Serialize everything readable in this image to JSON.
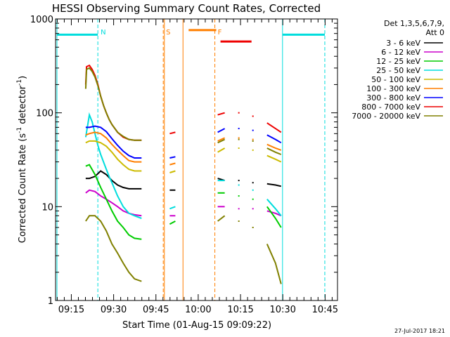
{
  "chart_data": {
    "type": "line",
    "title": "HESSI Observing Summary Count Rates, Corrected",
    "xlabel": "Start Time (01-Aug-15 09:09:22)",
    "ylabel": "Corrected Count Rate (s⁻¹ detector⁻¹)",
    "ylabel_parts": {
      "prefix": "Corrected Count Rate (s",
      "exp1": "-1",
      "middle": " detector",
      "exp2": "-1",
      "suffix": ")"
    },
    "y_scale": "log",
    "ylim": [
      1,
      1000
    ],
    "y_ticks": [
      {
        "value": 1,
        "label": "1"
      },
      {
        "value": 10,
        "label": "10"
      },
      {
        "value": 100,
        "label": "100"
      },
      {
        "value": 1000,
        "label": "1000"
      }
    ],
    "x_unit": "minutes after 09:09:22",
    "xlim": [
      0,
      100
    ],
    "x_ticks": [
      {
        "value": 5.6,
        "label": "09:15"
      },
      {
        "value": 20.6,
        "label": "09:30"
      },
      {
        "value": 35.6,
        "label": "09:45"
      },
      {
        "value": 50.6,
        "label": "10:00"
      },
      {
        "value": 65.6,
        "label": "10:15"
      },
      {
        "value": 80.6,
        "label": "10:30"
      },
      {
        "value": 95.6,
        "label": "10:45"
      }
    ],
    "legend": {
      "header": [
        "Det 1,3,5,6,7,9,",
        "Att 0"
      ],
      "placement": "right"
    },
    "series": [
      {
        "name": "3 - 6 keV",
        "color": "#000000",
        "x": [
          10.7,
          12.0,
          14.0,
          16.0,
          18.0,
          20.0,
          22.0,
          24.0,
          26.0,
          28.0,
          30.5,
          40.5,
          42.5,
          57.5,
          60.0,
          65.0,
          70.0,
          75.0,
          78.0,
          80.0
        ],
        "y": [
          20,
          20,
          21,
          24,
          22,
          19,
          17,
          16,
          15.5,
          15.5,
          15.5,
          15,
          15,
          20,
          19,
          19,
          18,
          17.5,
          17,
          16.5
        ]
      },
      {
        "name": "6 - 12 keV",
        "color": "#cc00cc",
        "x": [
          10.7,
          12.0,
          14.0,
          16.0,
          18.0,
          20.0,
          22.0,
          24.0,
          26.0,
          28.0,
          30.5,
          40.5,
          42.5,
          57.5,
          60.0,
          65.0,
          70.0,
          75.0,
          78.0,
          80.0
        ],
        "y": [
          14,
          15,
          14.5,
          13,
          12,
          11,
          10,
          9,
          8.5,
          8.2,
          8,
          8,
          8,
          10,
          10,
          9.5,
          9.5,
          9,
          8.5,
          8
        ]
      },
      {
        "name": "12 - 25 keV",
        "color": "#00cc00",
        "x": [
          10.7,
          12.0,
          14.0,
          16.0,
          18.0,
          20.0,
          22.0,
          24.0,
          26.0,
          28.0,
          30.5,
          40.5,
          42.5,
          57.5,
          60.0,
          65.0,
          70.0,
          75.0,
          78.0,
          80.0
        ],
        "y": [
          27,
          28,
          22,
          16,
          12,
          9,
          7,
          6,
          5,
          4.6,
          4.5,
          6.5,
          7,
          14,
          14,
          13,
          12,
          10,
          7.5,
          6
        ]
      },
      {
        "name": "25 - 50 keV",
        "color": "#00dddd",
        "x": [
          10.7,
          12.0,
          13.0,
          14.0,
          15.0,
          16.0,
          17.0,
          18.0,
          19.0,
          20.0,
          22.0,
          24.0,
          26.0,
          28.0,
          30.5,
          40.5,
          42.5,
          57.5,
          60.0,
          65.0,
          70.0,
          75.0,
          78.0,
          80.0
        ],
        "y": [
          55,
          95,
          80,
          60,
          45,
          36,
          30,
          25,
          21,
          18,
          13,
          10,
          8.5,
          8,
          7.5,
          9.5,
          10,
          19,
          19,
          17,
          15,
          12,
          9.5,
          8
        ]
      },
      {
        "name": "50 - 100 keV",
        "color": "#ccbb00",
        "x": [
          10.7,
          12.0,
          14.0,
          16.0,
          18.0,
          20.0,
          22.0,
          24.0,
          26.0,
          28.0,
          30.5,
          40.5,
          42.5,
          57.5,
          60.0,
          65.0,
          70.0,
          75.0,
          78.0,
          80.0
        ],
        "y": [
          48,
          50,
          50,
          48,
          44,
          38,
          32,
          28,
          25,
          24,
          24,
          23,
          24,
          38,
          42,
          42,
          40,
          35,
          32,
          30
        ]
      },
      {
        "name": "100 - 300 keV",
        "color": "#ff7f00",
        "x": [
          10.7,
          12.0,
          14.0,
          16.0,
          18.0,
          20.0,
          22.0,
          24.0,
          26.0,
          28.0,
          30.5,
          40.5,
          42.5,
          57.5,
          60.0,
          65.0,
          70.0,
          75.0,
          78.0,
          80.0
        ],
        "y": [
          58,
          60,
          62,
          60,
          54,
          46,
          40,
          35,
          31,
          30,
          30,
          28,
          29,
          50,
          54,
          54,
          52,
          46,
          42,
          40
        ]
      },
      {
        "name": "300 - 800 keV",
        "color": "#0000ff",
        "x": [
          10.7,
          12.0,
          14.0,
          16.0,
          18.0,
          20.0,
          22.0,
          24.0,
          26.0,
          28.0,
          30.5,
          40.5,
          42.5,
          57.5,
          60.0,
          65.0,
          70.0,
          75.0,
          78.0,
          80.0
        ],
        "y": [
          70,
          70,
          72,
          70,
          63,
          53,
          45,
          39,
          35,
          33,
          33,
          33,
          34,
          62,
          68,
          68,
          65,
          58,
          52,
          48
        ]
      },
      {
        "name": "800 - 7000 keV",
        "color": "#ee0000",
        "x": [
          10.7,
          11.0,
          12.0,
          13.0,
          14.0,
          15.0,
          16.0,
          17.0,
          18.0,
          19.0,
          20.0,
          22.0,
          24.0,
          26.0,
          28.0,
          30.5,
          40.5,
          42.5,
          57.5,
          60.0,
          65.0,
          70.0,
          75.0,
          78.0,
          80.0
        ],
        "y": [
          200,
          310,
          320,
          290,
          250,
          200,
          150,
          120,
          100,
          85,
          75,
          62,
          55,
          52,
          51,
          51,
          60,
          62,
          95,
          100,
          100,
          92,
          78,
          68,
          62
        ]
      },
      {
        "name": "7000 - 20000 keV",
        "color": "#808000",
        "x": [
          10.7,
          11.0,
          12.0,
          13.0,
          14.0,
          15.0,
          16.0,
          17.0,
          18.0,
          19.0,
          20.0,
          22.0,
          24.0,
          26.0,
          28.0,
          30.5,
          57.5,
          60.0,
          65.0,
          70.0,
          75.0,
          78.0,
          80.0
        ],
        "y": [
          180,
          290,
          300,
          275,
          240,
          195,
          150,
          120,
          100,
          85,
          75,
          62,
          56,
          52,
          51,
          51,
          48,
          52,
          52,
          50,
          42,
          38,
          36
        ]
      }
    ],
    "extra_series": [
      {
        "name": "7000 - 20000 keV (lower trace)",
        "color": "#808000",
        "x": [
          10.7,
          12.0,
          14.0,
          16.0,
          18.0,
          20.0,
          22.0,
          24.0,
          26.0,
          28.0,
          30.5,
          57.5,
          60.0,
          65.0,
          70.0,
          75.0,
          78.0,
          80.0
        ],
        "y": [
          7,
          8,
          8,
          7,
          5.5,
          4,
          3.2,
          2.5,
          2,
          1.7,
          1.6,
          7,
          8,
          7,
          6,
          4,
          2.5,
          1.5
        ]
      }
    ],
    "flag_bars": [
      {
        "label": "",
        "color": "#00dddd",
        "x": [
          0.5,
          15.0
        ],
        "y": 680
      },
      {
        "label": "",
        "color": "#00dddd",
        "x": [
          80.5,
          95.5
        ],
        "y": 680
      },
      {
        "label": "",
        "color": "#ff7f00",
        "x": [
          47.2,
          57.0
        ],
        "y": 760
      },
      {
        "label": "",
        "color": "#ee0000",
        "x": [
          58.5,
          69.5
        ],
        "y": 575
      }
    ],
    "markers": [
      {
        "label": "N",
        "color": "#00dddd",
        "x": 15.0,
        "style": "dashed"
      },
      {
        "label": "",
        "color": "#00dddd",
        "x": 0.5,
        "style": "solid"
      },
      {
        "label": "",
        "color": "#00dddd",
        "x": 80.5,
        "style": "solid"
      },
      {
        "label": "",
        "color": "#00dddd",
        "x": 95.5,
        "style": "dashed"
      },
      {
        "label": "S",
        "color": "#ff7f00",
        "x": 38.2,
        "style": "dashed"
      },
      {
        "label": "",
        "color": "#ff7f00",
        "x": 38.6,
        "style": "solid"
      },
      {
        "label": "",
        "color": "#ff7f00",
        "x": 45.2,
        "style": "solid"
      },
      {
        "label": "F",
        "color": "#ff7f00",
        "x": 56.5,
        "style": "dashed"
      }
    ],
    "footer": "27-Jul-2017 18:21"
  }
}
